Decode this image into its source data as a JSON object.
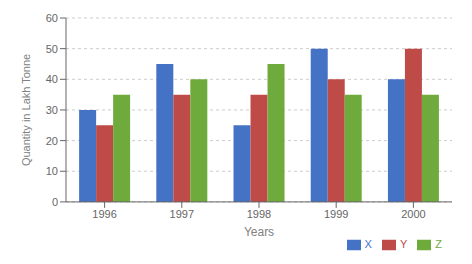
{
  "chart_data": {
    "type": "bar",
    "categories": [
      "1996",
      "1997",
      "1998",
      "1999",
      "2000"
    ],
    "series": [
      {
        "name": "X",
        "color": "#4472C4",
        "values": [
          30,
          45,
          25,
          50,
          40
        ]
      },
      {
        "name": "Y",
        "color": "#BE4B48",
        "values": [
          25,
          35,
          35,
          40,
          50
        ]
      },
      {
        "name": "Z",
        "color": "#6FAB3C",
        "values": [
          35,
          40,
          45,
          35,
          35
        ]
      }
    ],
    "xlabel": "Years",
    "ylabel": "Quantity in Lakh Tonne",
    "ylim": [
      0,
      60
    ],
    "yticks": [
      0,
      10,
      20,
      30,
      40,
      50,
      60
    ],
    "grid": true,
    "legend": "lower right"
  }
}
